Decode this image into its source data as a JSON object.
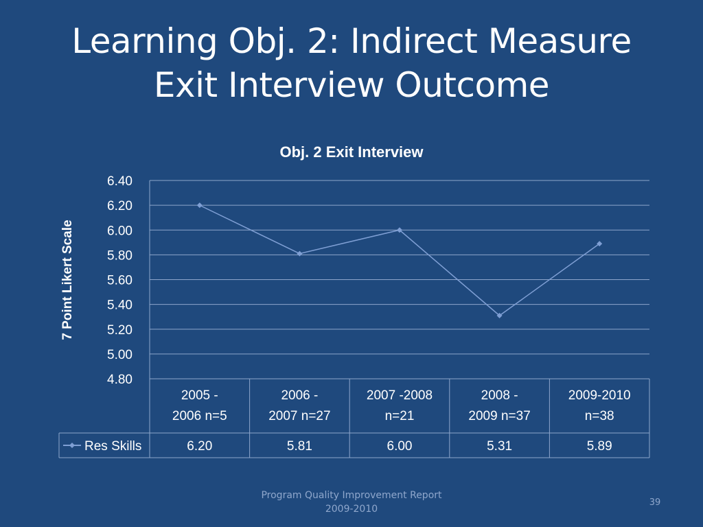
{
  "slide": {
    "title_line1": "Learning Obj. 2: Indirect Measure",
    "title_line2": "Exit Interview Outcome",
    "footer_line1": "Program Quality Improvement Report",
    "footer_line2": "2009-2010",
    "page_number": "39"
  },
  "chart_data": {
    "type": "line",
    "title": "Obj. 2 Exit Interview",
    "ylabel": "7 Point Likert Scale",
    "xlabel": "",
    "ylim": [
      4.8,
      6.4
    ],
    "yticks": [
      "6.40",
      "6.20",
      "6.00",
      "5.80",
      "5.60",
      "5.40",
      "5.20",
      "5.00",
      "4.80"
    ],
    "grid": true,
    "legend": "data-table",
    "categories": [
      [
        "2005 -",
        "2006 n=5"
      ],
      [
        "2006 -",
        "2007 n=27"
      ],
      [
        "2007 -2008",
        "n=21"
      ],
      [
        "2008 -",
        "2009 n=37"
      ],
      [
        "2009-2010",
        "n=38"
      ]
    ],
    "series": [
      {
        "name": "Res Skills",
        "values": [
          6.2,
          5.81,
          6.0,
          5.31,
          5.89
        ],
        "labels": [
          "6.20",
          "5.81",
          "6.00",
          "5.31",
          "5.89"
        ],
        "color": "#7f9fd4"
      }
    ]
  }
}
